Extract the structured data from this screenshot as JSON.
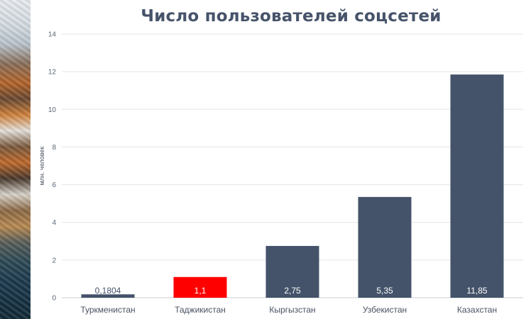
{
  "chart_data": {
    "type": "bar",
    "title": "Число пользователей соцсетей",
    "ylabel": "млн. человек",
    "xlabel": "",
    "ylim": [
      0,
      14
    ],
    "yticks": [
      0,
      2,
      4,
      6,
      8,
      10,
      12,
      14
    ],
    "grid": true,
    "categories": [
      "Туркменистан",
      "Таджикистан",
      "Кыргызстан",
      "Узбекистан",
      "Казахстан"
    ],
    "values": [
      0.1804,
      1.1,
      2.75,
      5.35,
      11.85
    ],
    "value_labels": [
      "0,1804",
      "1,1",
      "2,75",
      "5,35",
      "11,85"
    ],
    "colors": [
      "#44536a",
      "#ff0000",
      "#44536a",
      "#44536a",
      "#44536a"
    ],
    "label_colors": [
      "#44536a",
      "#ffffff",
      "#ffffff",
      "#ffffff",
      "#ffffff"
    ]
  }
}
